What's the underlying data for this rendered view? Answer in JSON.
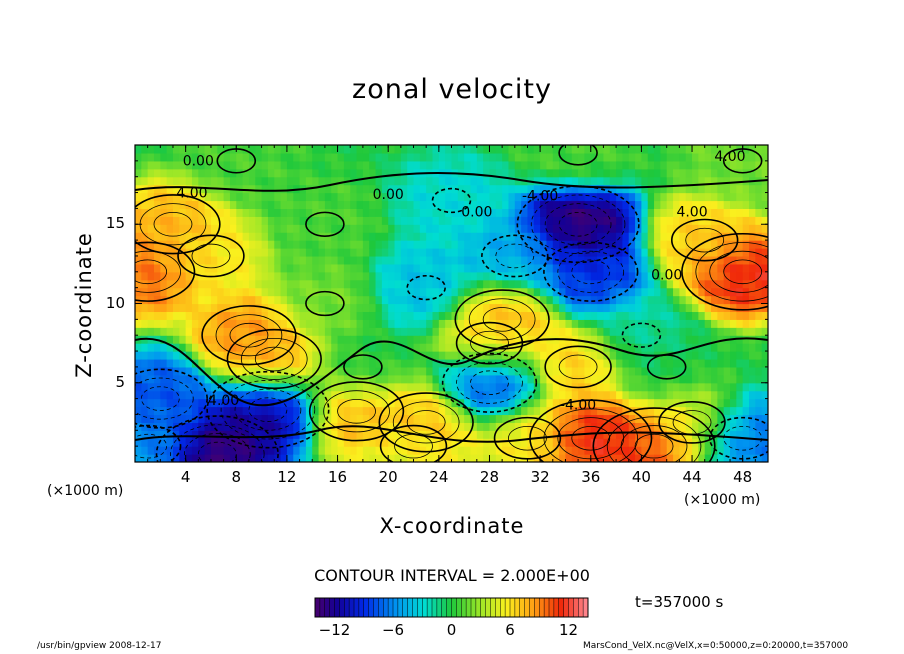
{
  "chart_data": {
    "type": "heatmap",
    "title": "zonal velocity",
    "xlabel": "X-coordinate",
    "ylabel": "Z-coordinate",
    "x_unit": "(×1000 m)",
    "y_unit": "(×1000 m)",
    "xlim": [
      0,
      50
    ],
    "ylim": [
      0,
      20
    ],
    "x_ticks": [
      "4",
      "8",
      "12",
      "16",
      "20",
      "24",
      "28",
      "32",
      "36",
      "40",
      "44",
      "48"
    ],
    "y_ticks": [
      "5",
      "10",
      "15"
    ],
    "contour_interval_text": "CONTOUR INTERVAL = 2.000E+00",
    "contour_labels": [
      "0.00",
      "-4.00",
      "4.00"
    ],
    "time_text": "t=357000 s",
    "colorbar": {
      "ticks": [
        "−12",
        "−6",
        "0",
        "6",
        "12"
      ],
      "range": [
        -14,
        14
      ]
    },
    "field_centers": [
      {
        "x": 35,
        "z": 15,
        "u": -14
      },
      {
        "x": 36,
        "z": 12,
        "u": -9
      },
      {
        "x": 48,
        "z": 12,
        "u": 12
      },
      {
        "x": 45,
        "z": 14,
        "u": 7
      },
      {
        "x": 1,
        "z": 12,
        "u": 10
      },
      {
        "x": 3,
        "z": 15,
        "u": 8
      },
      {
        "x": 6,
        "z": 13,
        "u": 6
      },
      {
        "x": 9,
        "z": 8,
        "u": 9
      },
      {
        "x": 11,
        "z": 6.5,
        "u": 8
      },
      {
        "x": 10.5,
        "z": 3.3,
        "u": -12
      },
      {
        "x": 6.5,
        "z": 0.5,
        "u": -14
      },
      {
        "x": 2,
        "z": 4,
        "u": -8
      },
      {
        "x": 1,
        "z": 1,
        "u": -6
      },
      {
        "x": 17.5,
        "z": 3.2,
        "u": 8
      },
      {
        "x": 23,
        "z": 2.5,
        "u": 8
      },
      {
        "x": 22,
        "z": 1,
        "u": 5
      },
      {
        "x": 28,
        "z": 5,
        "u": -9
      },
      {
        "x": 29,
        "z": 9,
        "u": 8
      },
      {
        "x": 28,
        "z": 7.5,
        "u": 6
      },
      {
        "x": 35,
        "z": 6,
        "u": 7
      },
      {
        "x": 36,
        "z": 1.5,
        "u": 12
      },
      {
        "x": 41,
        "z": 1,
        "u": 11
      },
      {
        "x": 31,
        "z": 1.5,
        "u": 6
      },
      {
        "x": 48,
        "z": 1.5,
        "u": -7
      },
      {
        "x": 44,
        "z": 2.5,
        "u": 5
      },
      {
        "x": 23,
        "z": 11,
        "u": -4
      },
      {
        "x": 25,
        "z": 16.5,
        "u": -3
      },
      {
        "x": 30,
        "z": 13,
        "u": -5
      },
      {
        "x": 40,
        "z": 8,
        "u": -2
      },
      {
        "x": 15,
        "z": 15,
        "u": 1
      },
      {
        "x": 18,
        "z": 6,
        "u": 0
      },
      {
        "x": 35,
        "z": 19.5,
        "u": 1
      },
      {
        "x": 8,
        "z": 19,
        "u": 1
      },
      {
        "x": 48,
        "z": 19,
        "u": 2
      },
      {
        "x": 15,
        "z": 10,
        "u": 2
      },
      {
        "x": 42,
        "z": 6,
        "u": 0
      }
    ]
  },
  "footer": {
    "left": "/usr/bin/gpview   2008-12-17",
    "right": "MarsCond_VelX.nc@VelX,x=0:50000,z=0:20000,t=357000"
  }
}
